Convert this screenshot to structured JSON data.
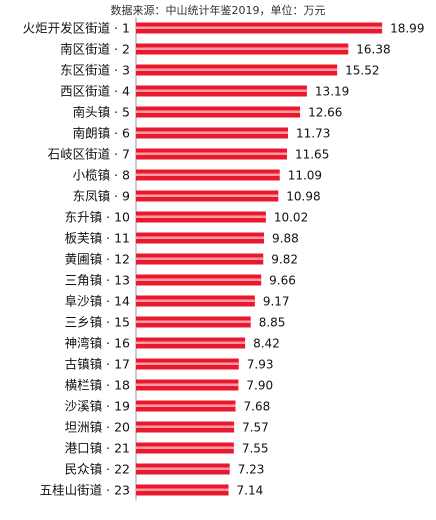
{
  "source_note": "数据来源：中山统计年鉴2019，单位：万元",
  "colors": {
    "bar": "#e8192c",
    "bar_highlight": "#ff9aa6",
    "text": "#111111"
  },
  "chart_data": {
    "type": "bar",
    "orientation": "horizontal",
    "title": "",
    "xlabel": "",
    "ylabel": "",
    "unit": "万元",
    "grid": false,
    "legend": "none",
    "xlim": [
      0,
      19.6
    ],
    "categories": [
      "火炬开发区街道 · 1",
      "南区街道 · 2",
      "东区街道 · 3",
      "西区街道 · 4",
      "南头镇 · 5",
      "南朗镇 · 6",
      "石岐区街道 · 7",
      "小榄镇 · 8",
      "东凤镇 · 9",
      "东升镇 · 10",
      "板芙镇 · 11",
      "黄圃镇 · 12",
      "三角镇 · 13",
      "阜沙镇 · 14",
      "三乡镇 · 15",
      "神湾镇 · 16",
      "古镇镇 · 17",
      "横栏镇 · 18",
      "沙溪镇 · 19",
      "坦洲镇 · 20",
      "港口镇 · 21",
      "民众镇 · 22",
      "五桂山街道 · 23"
    ],
    "values": [
      18.99,
      16.38,
      15.52,
      13.19,
      12.66,
      11.73,
      11.65,
      11.09,
      10.98,
      10.02,
      9.88,
      9.82,
      9.66,
      9.17,
      8.85,
      8.42,
      7.93,
      7.9,
      7.68,
      7.57,
      7.55,
      7.23,
      7.14
    ],
    "value_labels": [
      "18.99",
      "16.38",
      "15.52",
      "13.19",
      "12.66",
      "11.73",
      "11.65",
      "11.09",
      "10.98",
      "10.02",
      "9.88",
      "9.82",
      "9.66",
      "9.17",
      "8.85",
      "8.42",
      "7.93",
      "7.90",
      "7.68",
      "7.57",
      "7.55",
      "7.23",
      "7.14"
    ]
  }
}
